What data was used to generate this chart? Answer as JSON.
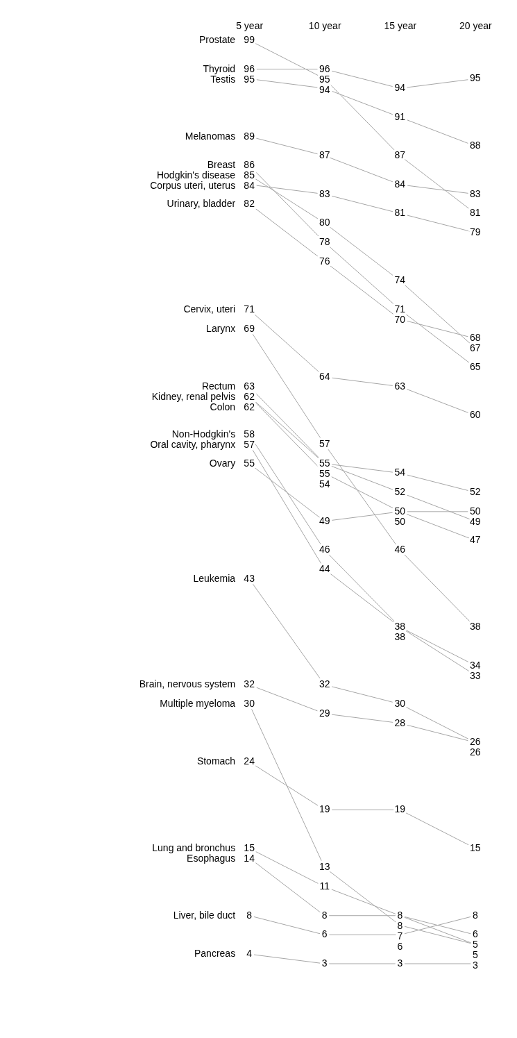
{
  "chart_data": {
    "type": "line",
    "categories": [
      "5 year",
      "10 year",
      "15 year",
      "20 year"
    ],
    "data_labels": true,
    "legend": false,
    "grid": false,
    "series": [
      {
        "name": "Prostate",
        "color": "#a6a6a6",
        "values": [
          99,
          95,
          87,
          81
        ]
      },
      {
        "name": "Thyroid",
        "color": "#a6a6a6",
        "values": [
          96,
          96,
          94,
          95
        ]
      },
      {
        "name": "Testis",
        "color": "#a6a6a6",
        "values": [
          95,
          94,
          91,
          88
        ]
      },
      {
        "name": "Melanomas",
        "color": "#a6a6a6",
        "values": [
          89,
          87,
          84,
          83
        ]
      },
      {
        "name": "Breast",
        "color": "#a6a6a6",
        "values": [
          86,
          78,
          71,
          65
        ]
      },
      {
        "name": "Hodgkin's disease",
        "color": "#a6a6a6",
        "values": [
          85,
          80,
          74,
          67
        ]
      },
      {
        "name": "Corpus uteri, uterus",
        "color": "#a6a6a6",
        "values": [
          84,
          83,
          81,
          79
        ]
      },
      {
        "name": "Urinary, bladder",
        "color": "#a6a6a6",
        "values": [
          82,
          76,
          70,
          68
        ]
      },
      {
        "name": "Cervix, uteri",
        "color": "#a6a6a6",
        "values": [
          71,
          64,
          63,
          60
        ]
      },
      {
        "name": "Larynx",
        "color": "#a6a6a6",
        "values": [
          69,
          57,
          46,
          38
        ]
      },
      {
        "name": "Rectum",
        "color": "#a6a6a6",
        "values": [
          63,
          55,
          52,
          49
        ]
      },
      {
        "name": "Kidney, renal pelvis",
        "color": "#a6a6a6",
        "values": [
          62,
          54,
          50,
          47
        ]
      },
      {
        "name": "Colon",
        "color": "#a6a6a6",
        "values": [
          62,
          55,
          54,
          52
        ]
      },
      {
        "name": "Non-Hodgkin's",
        "color": "#a6a6a6",
        "values": [
          58,
          46,
          38,
          34
        ]
      },
      {
        "name": "Oral cavity, pharynx",
        "color": "#a6a6a6",
        "values": [
          57,
          44,
          38,
          33
        ]
      },
      {
        "name": "Ovary",
        "color": "#a6a6a6",
        "values": [
          55,
          49,
          50,
          50
        ]
      },
      {
        "name": "Leukemia",
        "color": "#a6a6a6",
        "values": [
          43,
          32,
          30,
          26
        ]
      },
      {
        "name": "Brain, nervous system",
        "color": "#a6a6a6",
        "values": [
          32,
          29,
          28,
          26
        ]
      },
      {
        "name": "Multiple myeloma",
        "color": "#a6a6a6",
        "values": [
          30,
          13,
          7,
          5
        ]
      },
      {
        "name": "Stomach",
        "color": "#a6a6a6",
        "values": [
          24,
          19,
          19,
          15
        ]
      },
      {
        "name": "Lung and bronchus",
        "color": "#a6a6a6",
        "values": [
          15,
          11,
          8,
          6
        ]
      },
      {
        "name": "Esophagus",
        "color": "#a6a6a6",
        "values": [
          14,
          8,
          8,
          5
        ]
      },
      {
        "name": "Liver, bile duct",
        "color": "#a6a6a6",
        "values": [
          8,
          6,
          6,
          8
        ]
      },
      {
        "name": "Pancreas",
        "color": "#a6a6a6",
        "values": [
          4,
          3,
          3,
          3
        ]
      }
    ]
  }
}
